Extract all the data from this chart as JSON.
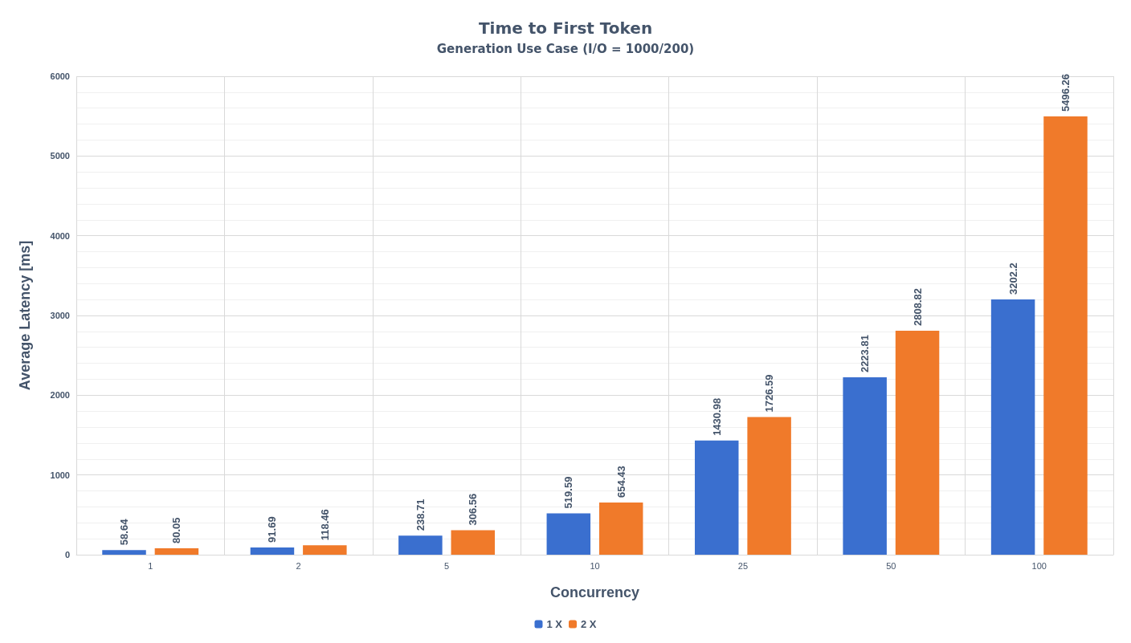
{
  "chart_data": {
    "type": "bar",
    "title": "Time to First Token",
    "subtitle": "Generation Use Case (I/O = 1000/200)",
    "xlabel": "Concurrency",
    "ylabel": "Average Latency [ms]",
    "categories": [
      "1",
      "2",
      "5",
      "10",
      "25",
      "50",
      "100"
    ],
    "series": [
      {
        "name": "1 X",
        "color": "#3a6fcf",
        "values": [
          58.64,
          91.69,
          238.71,
          519.59,
          1430.98,
          2223.81,
          3202.2
        ]
      },
      {
        "name": "2 X",
        "color": "#f07a2a",
        "values": [
          80.05,
          118.46,
          306.56,
          654.43,
          1726.59,
          2808.82,
          5496.26
        ]
      }
    ],
    "ylim": [
      0,
      6000
    ],
    "yticks": [
      0,
      1000,
      2000,
      3000,
      4000,
      5000,
      6000
    ],
    "grid": true,
    "legend": "bottom",
    "data_labels": true
  }
}
